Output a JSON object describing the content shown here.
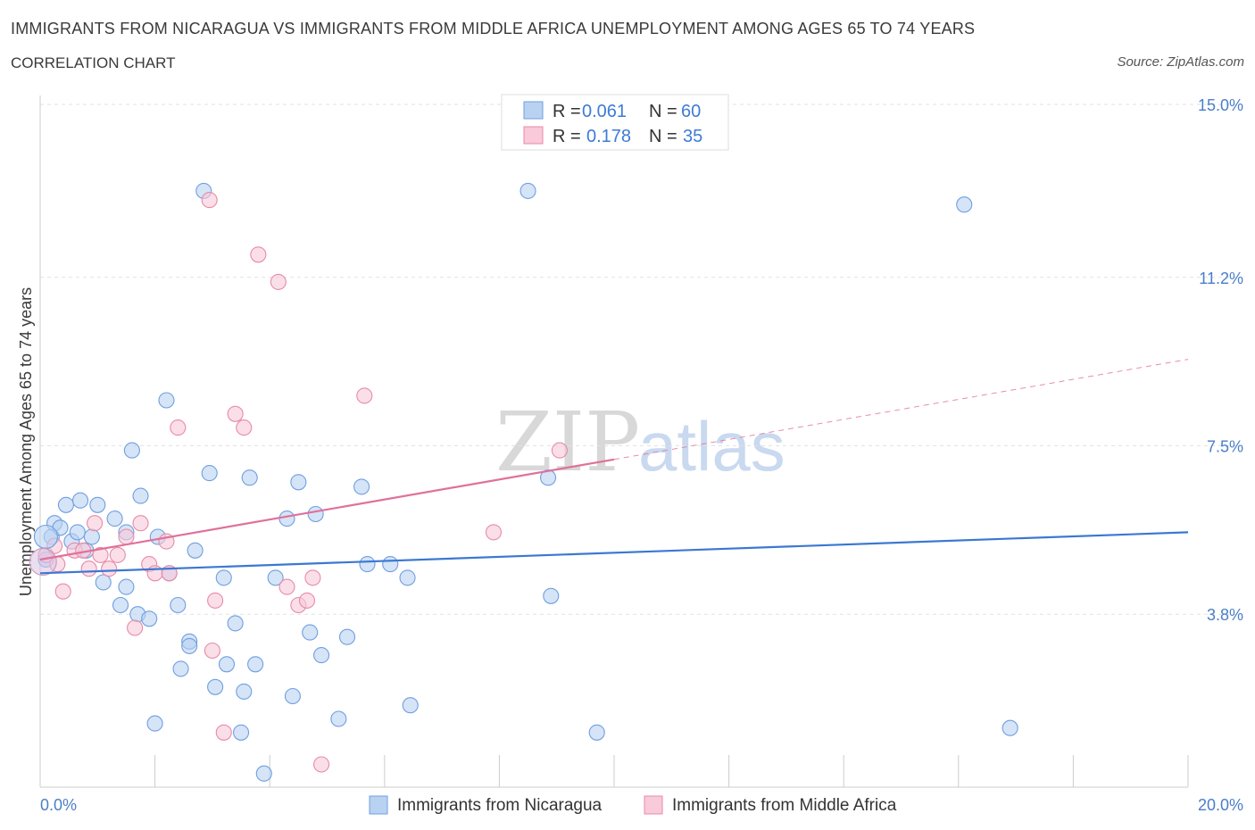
{
  "header": {
    "title": "IMMIGRANTS FROM NICARAGUA VS IMMIGRANTS FROM MIDDLE AFRICA UNEMPLOYMENT AMONG AGES 65 TO 74 YEARS",
    "subtitle": "CORRELATION CHART",
    "source": "Source: ZipAtlas.com"
  },
  "watermark": {
    "zip": "ZIP",
    "atlas": "atlas"
  },
  "legend": {
    "rows": [
      {
        "r_label": "R = ",
        "r_value": "0.061",
        "n_label": "N = ",
        "n_value": "60",
        "color": "#a9c6ee"
      },
      {
        "r_label": "R = ",
        "r_value": "0.178",
        "n_label": "N = ",
        "n_value": "35",
        "color": "#f5b8cb"
      }
    ]
  },
  "chart_data": {
    "type": "scatter",
    "title": "IMMIGRANTS FROM NICARAGUA VS IMMIGRANTS FROM MIDDLE AFRICA UNEMPLOYMENT AMONG AGES 65 TO 74 YEARS",
    "xlabel": "",
    "ylabel": "Unemployment Among Ages 65 to 74 years",
    "xlim": [
      0,
      20
    ],
    "ylim": [
      0,
      15
    ],
    "x_tick_labels": [
      {
        "value": 0,
        "label": "0.0%"
      },
      {
        "value": 20,
        "label": "20.0%"
      }
    ],
    "y_ticks": [
      {
        "value": 3.8,
        "label": "3.8%"
      },
      {
        "value": 7.5,
        "label": "7.5%"
      },
      {
        "value": 11.2,
        "label": "11.2%"
      },
      {
        "value": 15.0,
        "label": "15.0%"
      }
    ],
    "x_minor_ticks": [
      2,
      4,
      6,
      8,
      10,
      12,
      14,
      16,
      18,
      20
    ],
    "series": [
      {
        "name": "Immigrants from Nicaragua",
        "color": "#6f9fe0",
        "fill": "#b9d2f2",
        "trend": {
          "x0": 0,
          "y0": 4.7,
          "x1": 20,
          "y1": 5.6,
          "dashed_from": null
        },
        "points": [
          [
            0.1,
            5.0
          ],
          [
            0.2,
            5.5
          ],
          [
            0.25,
            5.8
          ],
          [
            0.35,
            5.7
          ],
          [
            0.45,
            6.2
          ],
          [
            0.55,
            5.4
          ],
          [
            0.65,
            5.6
          ],
          [
            0.7,
            6.3
          ],
          [
            0.8,
            5.2
          ],
          [
            0.9,
            5.5
          ],
          [
            1.0,
            6.2
          ],
          [
            1.1,
            4.5
          ],
          [
            1.3,
            5.9
          ],
          [
            1.4,
            4.0
          ],
          [
            1.5,
            5.6
          ],
          [
            1.6,
            7.4
          ],
          [
            1.7,
            3.8
          ],
          [
            1.75,
            6.4
          ],
          [
            1.9,
            3.7
          ],
          [
            2.0,
            1.4
          ],
          [
            2.05,
            5.5
          ],
          [
            2.2,
            8.5
          ],
          [
            2.25,
            4.7
          ],
          [
            2.4,
            4.0
          ],
          [
            2.45,
            2.6
          ],
          [
            2.6,
            3.2
          ],
          [
            2.7,
            5.2
          ],
          [
            2.85,
            13.1
          ],
          [
            2.95,
            6.9
          ],
          [
            3.05,
            2.2
          ],
          [
            3.2,
            4.6
          ],
          [
            3.25,
            2.7
          ],
          [
            3.4,
            3.6
          ],
          [
            3.5,
            1.2
          ],
          [
            3.55,
            2.1
          ],
          [
            3.65,
            6.8
          ],
          [
            3.75,
            2.7
          ],
          [
            3.9,
            0.3
          ],
          [
            4.1,
            4.6
          ],
          [
            4.3,
            5.9
          ],
          [
            4.4,
            2.0
          ],
          [
            4.5,
            6.7
          ],
          [
            4.7,
            3.4
          ],
          [
            4.8,
            6.0
          ],
          [
            4.9,
            2.9
          ],
          [
            5.2,
            1.5
          ],
          [
            5.35,
            3.3
          ],
          [
            5.6,
            6.6
          ],
          [
            5.7,
            4.9
          ],
          [
            6.1,
            4.9
          ],
          [
            6.4,
            4.6
          ],
          [
            6.45,
            1.8
          ],
          [
            8.5,
            13.1
          ],
          [
            8.85,
            6.8
          ],
          [
            8.9,
            4.2
          ],
          [
            9.7,
            1.2
          ],
          [
            16.1,
            12.8
          ],
          [
            16.9,
            1.3
          ],
          [
            2.6,
            3.1
          ],
          [
            1.5,
            4.4
          ]
        ]
      },
      {
        "name": "Immigrants from Middle Africa",
        "color": "#e88aa7",
        "fill": "#f9cad9",
        "trend": {
          "x0": 0,
          "y0": 5.0,
          "x1": 20,
          "y1": 9.4,
          "dashed_from": 10
        },
        "points": [
          [
            0.1,
            5.1
          ],
          [
            0.25,
            5.3
          ],
          [
            0.4,
            4.3
          ],
          [
            0.6,
            5.2
          ],
          [
            0.75,
            5.2
          ],
          [
            0.85,
            4.8
          ],
          [
            0.95,
            5.8
          ],
          [
            1.05,
            5.1
          ],
          [
            1.2,
            4.8
          ],
          [
            1.35,
            5.1
          ],
          [
            1.5,
            5.5
          ],
          [
            1.65,
            3.5
          ],
          [
            1.75,
            5.8
          ],
          [
            1.9,
            4.9
          ],
          [
            2.0,
            4.7
          ],
          [
            2.2,
            5.4
          ],
          [
            2.25,
            4.7
          ],
          [
            2.4,
            7.9
          ],
          [
            2.95,
            12.9
          ],
          [
            3.0,
            3.0
          ],
          [
            3.05,
            4.1
          ],
          [
            3.2,
            1.2
          ],
          [
            3.4,
            8.2
          ],
          [
            3.55,
            7.9
          ],
          [
            3.8,
            11.7
          ],
          [
            4.15,
            11.1
          ],
          [
            4.3,
            4.4
          ],
          [
            4.5,
            4.0
          ],
          [
            4.65,
            4.1
          ],
          [
            4.75,
            4.6
          ],
          [
            4.9,
            0.5
          ],
          [
            5.65,
            8.6
          ],
          [
            7.9,
            5.6
          ],
          [
            9.05,
            7.4
          ],
          [
            0.3,
            4.9
          ]
        ]
      }
    ]
  }
}
